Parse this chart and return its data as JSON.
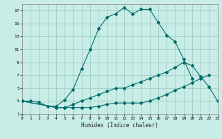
{
  "xlabel": "Humidex (Indice chaleur)",
  "background_color": "#c8ece6",
  "grid_color": "#9ecfc8",
  "line_color": "#006b6b",
  "xlim": [
    0,
    23
  ],
  "ylim": [
    1,
    18
  ],
  "xticks": [
    0,
    1,
    2,
    3,
    4,
    5,
    6,
    7,
    8,
    9,
    10,
    11,
    12,
    13,
    14,
    15,
    16,
    17,
    18,
    19,
    20,
    21,
    22,
    23
  ],
  "yticks": [
    1,
    3,
    5,
    7,
    9,
    11,
    13,
    15,
    17
  ],
  "series": [
    {
      "x": [
        0,
        1,
        2,
        3,
        4,
        5,
        6,
        7,
        8,
        9,
        10,
        11,
        12,
        13,
        14,
        15,
        16,
        17,
        18,
        19,
        20
      ],
      "y": [
        3,
        3,
        2.8,
        2.2,
        2.2,
        3.2,
        4.8,
        8,
        11,
        14.2,
        16,
        16.5,
        17.5,
        16.5,
        17.2,
        17.2,
        15.2,
        13.2,
        12.2,
        9.5,
        6.5
      ]
    },
    {
      "x": [
        0,
        4,
        5,
        6,
        7,
        8,
        9,
        10,
        11,
        12,
        13,
        14,
        15,
        16,
        17,
        18,
        19,
        20,
        21,
        22
      ],
      "y": [
        3,
        2,
        2,
        2,
        2,
        2,
        2.2,
        2.5,
        2.7,
        2.7,
        2.7,
        2.7,
        3,
        3.5,
        4,
        4.7,
        5.2,
        5.8,
        6.5,
        7
      ]
    },
    {
      "x": [
        0,
        4,
        5,
        6,
        7,
        8,
        9,
        10,
        11,
        12,
        13,
        14,
        15,
        16,
        17,
        18,
        19,
        20,
        21,
        22,
        23
      ],
      "y": [
        3,
        2,
        2,
        2.5,
        3,
        3.5,
        4,
        4.5,
        5,
        5,
        5.5,
        6,
        6.5,
        7,
        7.5,
        8.2,
        9,
        8.5,
        6.8,
        5.2,
        3
      ]
    }
  ]
}
